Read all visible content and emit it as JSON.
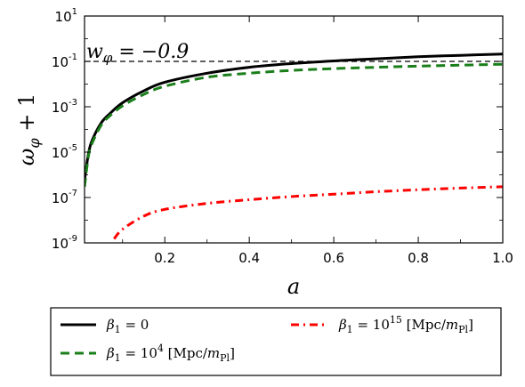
{
  "chart_data": {
    "type": "line",
    "title": "",
    "xlabel": "a",
    "ylabel": "ω_φ + 1",
    "xlim": [
      0.01,
      1.0
    ],
    "ylim": [
      1e-09,
      10
    ],
    "yscale": "log",
    "xticks": [
      0.2,
      0.4,
      0.6,
      0.8,
      1.0
    ],
    "xtick_labels": [
      "0.2",
      "0.4",
      "0.6",
      "0.8",
      "1.0"
    ],
    "yticks": [
      1e-09,
      1e-07,
      1e-05,
      0.001,
      0.1,
      10
    ],
    "ytick_exponents": [
      "-9",
      "-7",
      "-5",
      "-3",
      "-1",
      "1"
    ],
    "ytick_base": "10",
    "grid": false,
    "legend_placement": "below-plot",
    "reference_line": {
      "y": 0.1,
      "label": "w_φ = −0.9",
      "color": "#000000",
      "style": "dashed"
    },
    "series": [
      {
        "name": "β1 = 0",
        "color": "#000000",
        "style": "solid",
        "x": [
          0.01,
          0.02,
          0.03,
          0.05,
          0.07,
          0.1,
          0.15,
          0.2,
          0.3,
          0.4,
          0.5,
          0.6,
          0.7,
          0.8,
          0.9,
          1.0
        ],
        "y": [
          6e-07,
          1e-05,
          4e-05,
          0.0002,
          0.0005,
          0.0015,
          0.005,
          0.012,
          0.03,
          0.055,
          0.08,
          0.105,
          0.13,
          0.16,
          0.185,
          0.21
        ]
      },
      {
        "name": "β1 = 10^4 [Mpc/m_Pl]",
        "color": "#1a7f1a",
        "style": "dashed",
        "x": [
          0.01,
          0.02,
          0.03,
          0.05,
          0.07,
          0.1,
          0.15,
          0.2,
          0.3,
          0.4,
          0.5,
          0.6,
          0.7,
          0.8,
          0.9,
          1.0
        ],
        "y": [
          3e-07,
          8e-06,
          3e-05,
          0.00016,
          0.0004,
          0.0011,
          0.0035,
          0.008,
          0.02,
          0.03,
          0.04,
          0.048,
          0.055,
          0.062,
          0.068,
          0.075
        ]
      },
      {
        "name": "β1 = 10^15 [Mpc/m_Pl]",
        "color": "#ff0000",
        "style": "dash-dot",
        "x": [
          0.08,
          0.1,
          0.15,
          0.2,
          0.3,
          0.4,
          0.5,
          0.6,
          0.7,
          0.8,
          0.9,
          1.0
        ],
        "y": [
          1.5e-09,
          4e-09,
          1.5e-08,
          3e-08,
          5.5e-08,
          8e-08,
          1.1e-07,
          1.4e-07,
          1.8e-07,
          2.2e-07,
          2.6e-07,
          3e-07
        ]
      }
    ],
    "legend_entries": [
      {
        "label_main": "β",
        "sub": "1",
        "rest": " = 0",
        "exp": "",
        "unit": "",
        "unit_sub": ""
      },
      {
        "label_main": "β",
        "sub": "1",
        "rest": " = 10",
        "exp": "4",
        "unit": " [Mpc/m",
        "unit_sub": "Pl"
      },
      {
        "label_main": "β",
        "sub": "1",
        "rest": " = 10",
        "exp": "15",
        "unit": " [Mpc/m",
        "unit_sub": "Pl"
      }
    ]
  }
}
